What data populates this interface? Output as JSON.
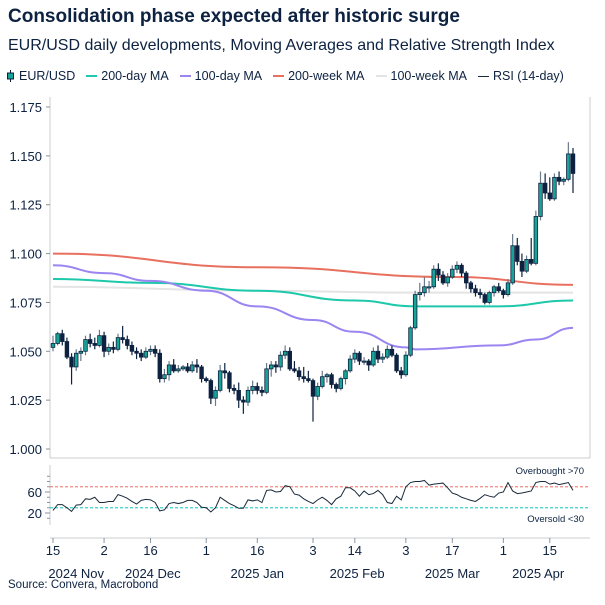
{
  "chart_data": {
    "type": "candlestick+line",
    "title": "Consolidation phase expected after historic surge",
    "subtitle": "EUR/USD daily developments, Moving Averages and Relative Strength Index",
    "source": "Source: Convera, Macrobond",
    "legend": [
      {
        "name": "EUR/USD",
        "color": "#17a398",
        "kind": "candle"
      },
      {
        "name": "200-day MA",
        "color": "#1ec8aa",
        "kind": "line"
      },
      {
        "name": "100-day MA",
        "color": "#9b85f0",
        "kind": "line"
      },
      {
        "name": "200-week MA",
        "color": "#e8705f",
        "kind": "line"
      },
      {
        "name": "100-week MA",
        "color": "#e4e4e4",
        "kind": "line"
      },
      {
        "name": "RSI (14-day)",
        "color": "#1a2a3a",
        "kind": "line"
      }
    ],
    "legend_position": "top-left",
    "colors": {
      "up": "#17a398",
      "down": "#0d2240",
      "overbought": "#f08a80",
      "oversold": "#3ad0c8"
    },
    "price_axis": {
      "ylim": [
        1.0,
        1.175
      ],
      "ticks": [
        "1.000",
        "1.025",
        "1.050",
        "1.075",
        "1.100",
        "1.125",
        "1.150",
        "1.175"
      ]
    },
    "rsi_axis": {
      "ylim": [
        0,
        100
      ],
      "ticks": [
        "20",
        "60"
      ],
      "overbought": 70,
      "oversold": 30,
      "overbought_label": "Overbought >70",
      "oversold_label": "Oversold <30"
    },
    "x_ticks": [
      {
        "date": "2024-11-15",
        "label": "15"
      },
      {
        "date": "2024-12-02",
        "label": "2"
      },
      {
        "date": "2024-12-16",
        "label": "16"
      },
      {
        "date": "2025-01-01",
        "label": "1"
      },
      {
        "date": "2025-01-16",
        "label": "16"
      },
      {
        "date": "2025-02-03",
        "label": "3"
      },
      {
        "date": "2025-02-14",
        "label": "14"
      },
      {
        "date": "2025-03-03",
        "label": "3"
      },
      {
        "date": "2025-03-17",
        "label": "17"
      },
      {
        "date": "2025-04-01",
        "label": "1"
      },
      {
        "date": "2025-04-15",
        "label": "15"
      }
    ],
    "x_months": [
      {
        "month": "2024-11",
        "label": "2024 Nov"
      },
      {
        "month": "2024-12",
        "label": "2024 Dec"
      },
      {
        "month": "2025-01",
        "label": "2025 Jan"
      },
      {
        "month": "2025-02",
        "label": "2025 Feb"
      },
      {
        "month": "2025-03",
        "label": "2025 Mar"
      },
      {
        "month": "2025-04",
        "label": "2025 Apr"
      }
    ],
    "candle_fields": [
      "date",
      "open",
      "high",
      "low",
      "close",
      "rsi"
    ],
    "candles": [
      [
        "2024-11-15",
        1.052,
        1.058,
        1.05,
        1.054,
        25
      ],
      [
        "2024-11-18",
        1.054,
        1.06,
        1.053,
        1.059,
        36
      ],
      [
        "2024-11-19",
        1.059,
        1.061,
        1.053,
        1.055,
        36
      ],
      [
        "2024-11-20",
        1.055,
        1.057,
        1.046,
        1.047,
        30
      ],
      [
        "2024-11-21",
        1.047,
        1.049,
        1.033,
        1.042,
        23
      ],
      [
        "2024-11-22",
        1.042,
        1.051,
        1.04,
        1.049,
        35
      ],
      [
        "2024-11-25",
        1.049,
        1.052,
        1.045,
        1.05,
        36
      ],
      [
        "2024-11-26",
        1.05,
        1.058,
        1.048,
        1.056,
        47
      ],
      [
        "2024-11-27",
        1.056,
        1.059,
        1.052,
        1.054,
        46
      ],
      [
        "2024-11-28",
        1.054,
        1.057,
        1.051,
        1.053,
        50
      ],
      [
        "2024-11-29",
        1.053,
        1.061,
        1.052,
        1.058,
        40
      ],
      [
        "2024-12-02",
        1.058,
        1.06,
        1.047,
        1.05,
        40
      ],
      [
        "2024-12-03",
        1.05,
        1.054,
        1.048,
        1.052,
        42
      ],
      [
        "2024-12-04",
        1.052,
        1.055,
        1.049,
        1.051,
        42
      ],
      [
        "2024-12-05",
        1.051,
        1.059,
        1.05,
        1.057,
        55
      ],
      [
        "2024-12-06",
        1.057,
        1.063,
        1.054,
        1.056,
        52
      ],
      [
        "2024-12-09",
        1.056,
        1.058,
        1.051,
        1.053,
        48
      ],
      [
        "2024-12-10",
        1.053,
        1.055,
        1.048,
        1.05,
        42
      ],
      [
        "2024-12-11",
        1.05,
        1.052,
        1.046,
        1.049,
        37
      ],
      [
        "2024-12-12",
        1.049,
        1.051,
        1.045,
        1.047,
        44
      ],
      [
        "2024-12-13",
        1.047,
        1.052,
        1.046,
        1.05,
        46
      ],
      [
        "2024-12-16",
        1.05,
        1.053,
        1.048,
        1.051,
        45
      ],
      [
        "2024-12-17",
        1.051,
        1.053,
        1.047,
        1.049,
        40
      ],
      [
        "2024-12-18",
        1.049,
        1.051,
        1.034,
        1.036,
        24
      ],
      [
        "2024-12-19",
        1.036,
        1.041,
        1.034,
        1.038,
        26
      ],
      [
        "2024-12-20",
        1.038,
        1.045,
        1.035,
        1.043,
        38
      ],
      [
        "2024-12-23",
        1.043,
        1.046,
        1.039,
        1.04,
        40
      ],
      [
        "2024-12-24",
        1.04,
        1.043,
        1.039,
        1.041,
        38
      ],
      [
        "2024-12-25",
        1.041,
        1.043,
        1.04,
        1.042,
        40
      ],
      [
        "2024-12-26",
        1.042,
        1.044,
        1.039,
        1.04,
        44
      ],
      [
        "2024-12-27",
        1.04,
        1.045,
        1.039,
        1.043,
        44
      ],
      [
        "2024-12-30",
        1.043,
        1.046,
        1.039,
        1.042,
        40
      ],
      [
        "2024-12-31",
        1.042,
        1.043,
        1.034,
        1.036,
        31
      ],
      [
        "2025-01-01",
        1.036,
        1.037,
        1.034,
        1.035,
        30
      ],
      [
        "2025-01-02",
        1.035,
        1.036,
        1.023,
        1.026,
        22
      ],
      [
        "2025-01-03",
        1.026,
        1.032,
        1.022,
        1.03,
        30
      ],
      [
        "2025-01-06",
        1.03,
        1.043,
        1.029,
        1.04,
        50
      ],
      [
        "2025-01-07",
        1.04,
        1.044,
        1.036,
        1.039,
        44
      ],
      [
        "2025-01-08",
        1.039,
        1.04,
        1.029,
        1.031,
        38
      ],
      [
        "2025-01-09",
        1.031,
        1.033,
        1.028,
        1.03,
        34
      ],
      [
        "2025-01-10",
        1.03,
        1.034,
        1.021,
        1.025,
        29
      ],
      [
        "2025-01-13",
        1.025,
        1.027,
        1.018,
        1.024,
        29
      ],
      [
        "2025-01-14",
        1.024,
        1.032,
        1.022,
        1.03,
        45
      ],
      [
        "2025-01-15",
        1.03,
        1.035,
        1.028,
        1.032,
        43
      ],
      [
        "2025-01-16",
        1.032,
        1.034,
        1.028,
        1.03,
        45
      ],
      [
        "2025-01-17",
        1.03,
        1.032,
        1.027,
        1.029,
        40
      ],
      [
        "2025-01-20",
        1.029,
        1.044,
        1.028,
        1.041,
        63
      ],
      [
        "2025-01-21",
        1.041,
        1.045,
        1.037,
        1.043,
        64
      ],
      [
        "2025-01-22",
        1.043,
        1.045,
        1.039,
        1.042,
        60
      ],
      [
        "2025-01-23",
        1.042,
        1.05,
        1.04,
        1.048,
        61
      ],
      [
        "2025-01-24",
        1.048,
        1.053,
        1.046,
        1.05,
        72
      ],
      [
        "2025-01-27",
        1.05,
        1.052,
        1.04,
        1.041,
        70
      ],
      [
        "2025-01-28",
        1.041,
        1.045,
        1.039,
        1.04,
        56
      ],
      [
        "2025-01-29",
        1.04,
        1.042,
        1.035,
        1.037,
        54
      ],
      [
        "2025-01-30",
        1.037,
        1.042,
        1.034,
        1.036,
        47
      ],
      [
        "2025-01-31",
        1.036,
        1.04,
        1.034,
        1.035,
        42
      ],
      [
        "2025-02-03",
        1.035,
        1.036,
        1.014,
        1.027,
        38
      ],
      [
        "2025-02-04",
        1.027,
        1.034,
        1.025,
        1.032,
        45
      ],
      [
        "2025-02-05",
        1.032,
        1.04,
        1.031,
        1.037,
        50
      ],
      [
        "2025-02-06",
        1.037,
        1.039,
        1.034,
        1.038,
        44
      ],
      [
        "2025-02-07",
        1.038,
        1.039,
        1.031,
        1.033,
        36
      ],
      [
        "2025-02-10",
        1.033,
        1.034,
        1.029,
        1.031,
        47
      ],
      [
        "2025-02-11",
        1.031,
        1.037,
        1.03,
        1.036,
        52
      ],
      [
        "2025-02-12",
        1.036,
        1.041,
        1.033,
        1.04,
        68
      ],
      [
        "2025-02-13",
        1.04,
        1.048,
        1.039,
        1.046,
        68
      ],
      [
        "2025-02-14",
        1.046,
        1.051,
        1.044,
        1.049,
        62
      ],
      [
        "2025-02-17",
        1.049,
        1.05,
        1.043,
        1.045,
        52
      ],
      [
        "2025-02-18",
        1.045,
        1.047,
        1.043,
        1.045,
        62
      ],
      [
        "2025-02-19",
        1.045,
        1.046,
        1.04,
        1.043,
        55
      ],
      [
        "2025-02-20",
        1.043,
        1.052,
        1.042,
        1.05,
        57
      ],
      [
        "2025-02-21",
        1.05,
        1.053,
        1.044,
        1.046,
        63
      ],
      [
        "2025-02-24",
        1.046,
        1.049,
        1.044,
        1.047,
        55
      ],
      [
        "2025-02-25",
        1.047,
        1.053,
        1.046,
        1.051,
        40
      ],
      [
        "2025-02-26",
        1.051,
        1.053,
        1.047,
        1.048,
        38
      ],
      [
        "2025-02-27",
        1.048,
        1.049,
        1.039,
        1.04,
        52
      ],
      [
        "2025-02-28",
        1.04,
        1.042,
        1.036,
        1.038,
        45
      ],
      [
        "2025-03-03",
        1.038,
        1.05,
        1.037,
        1.048,
        70
      ],
      [
        "2025-03-04",
        1.048,
        1.063,
        1.047,
        1.062,
        78
      ],
      [
        "2025-03-05",
        1.062,
        1.081,
        1.061,
        1.079,
        80
      ],
      [
        "2025-03-06",
        1.079,
        1.085,
        1.076,
        1.08,
        80
      ],
      [
        "2025-03-07",
        1.08,
        1.088,
        1.078,
        1.083,
        82
      ],
      [
        "2025-03-10",
        1.083,
        1.086,
        1.08,
        1.083,
        73
      ],
      [
        "2025-03-11",
        1.083,
        1.094,
        1.082,
        1.092,
        75
      ],
      [
        "2025-03-12",
        1.092,
        1.095,
        1.086,
        1.089,
        76
      ],
      [
        "2025-03-13",
        1.089,
        1.091,
        1.084,
        1.085,
        77
      ],
      [
        "2025-03-14",
        1.085,
        1.09,
        1.083,
        1.088,
        68
      ],
      [
        "2025-03-17",
        1.088,
        1.094,
        1.087,
        1.092,
        58
      ],
      [
        "2025-03-18",
        1.092,
        1.096,
        1.09,
        1.094,
        55
      ],
      [
        "2025-03-19",
        1.094,
        1.095,
        1.088,
        1.09,
        50
      ],
      [
        "2025-03-20",
        1.09,
        1.091,
        1.082,
        1.085,
        47
      ],
      [
        "2025-03-21",
        1.085,
        1.086,
        1.08,
        1.082,
        44
      ],
      [
        "2025-03-24",
        1.082,
        1.084,
        1.078,
        1.08,
        42
      ],
      [
        "2025-03-25",
        1.08,
        1.082,
        1.077,
        1.079,
        48
      ],
      [
        "2025-03-26",
        1.079,
        1.08,
        1.074,
        1.075,
        55
      ],
      [
        "2025-03-27",
        1.075,
        1.081,
        1.074,
        1.08,
        52
      ],
      [
        "2025-03-28",
        1.08,
        1.084,
        1.078,
        1.083,
        50
      ],
      [
        "2025-03-31",
        1.083,
        1.085,
        1.08,
        1.081,
        58
      ],
      [
        "2025-04-01",
        1.081,
        1.082,
        1.077,
        1.079,
        60
      ],
      [
        "2025-04-02",
        1.079,
        1.087,
        1.078,
        1.085,
        78
      ],
      [
        "2025-04-03",
        1.085,
        1.11,
        1.084,
        1.104,
        62
      ],
      [
        "2025-04-04",
        1.104,
        1.108,
        1.094,
        1.096,
        57
      ],
      [
        "2025-04-07",
        1.096,
        1.1,
        1.088,
        1.091,
        58
      ],
      [
        "2025-04-08",
        1.091,
        1.099,
        1.09,
        1.097,
        60
      ],
      [
        "2025-04-09",
        1.097,
        1.108,
        1.094,
        1.095,
        62
      ],
      [
        "2025-04-10",
        1.095,
        1.122,
        1.094,
        1.119,
        78
      ],
      [
        "2025-04-11",
        1.119,
        1.142,
        1.117,
        1.136,
        80
      ],
      [
        "2025-04-14",
        1.136,
        1.141,
        1.128,
        1.131,
        80
      ],
      [
        "2025-04-15",
        1.131,
        1.139,
        1.127,
        1.128,
        75
      ],
      [
        "2025-04-16",
        1.128,
        1.141,
        1.127,
        1.139,
        77
      ],
      [
        "2025-04-17",
        1.139,
        1.142,
        1.135,
        1.137,
        74
      ],
      [
        "2025-04-18",
        1.137,
        1.139,
        1.135,
        1.138,
        76
      ],
      [
        "2025-04-21",
        1.138,
        1.157,
        1.137,
        1.151,
        78
      ],
      [
        "2025-04-22",
        1.151,
        1.154,
        1.131,
        1.141,
        63
      ]
    ],
    "moving_averages": [
      {
        "name": "200-week MA",
        "color": "#e8705f",
        "points": [
          [
            "2024-11-15",
            1.1
          ],
          [
            "2025-01-16",
            1.093
          ],
          [
            "2025-03-17",
            1.088
          ],
          [
            "2025-04-22",
            1.084
          ]
        ]
      },
      {
        "name": "100-week MA",
        "color": "#e4e4e4",
        "points": [
          [
            "2024-11-15",
            1.083
          ],
          [
            "2025-01-16",
            1.081
          ],
          [
            "2025-03-03",
            1.08
          ],
          [
            "2025-04-22",
            1.08
          ]
        ]
      },
      {
        "name": "200-day MA",
        "color": "#1ec8aa",
        "points": [
          [
            "2024-11-15",
            1.087
          ],
          [
            "2024-12-16",
            1.085
          ],
          [
            "2025-01-16",
            1.081
          ],
          [
            "2025-02-14",
            1.076
          ],
          [
            "2025-03-05",
            1.073
          ],
          [
            "2025-03-31",
            1.073
          ],
          [
            "2025-04-22",
            1.076
          ]
        ]
      },
      {
        "name": "100-day MA",
        "color": "#9b85f0",
        "points": [
          [
            "2024-11-15",
            1.094
          ],
          [
            "2024-12-02",
            1.09
          ],
          [
            "2024-12-16",
            1.086
          ],
          [
            "2025-01-01",
            1.081
          ],
          [
            "2025-01-16",
            1.073
          ],
          [
            "2025-02-03",
            1.066
          ],
          [
            "2025-02-14",
            1.06
          ],
          [
            "2025-03-03",
            1.052
          ],
          [
            "2025-03-05",
            1.051
          ],
          [
            "2025-03-31",
            1.053
          ],
          [
            "2025-04-10",
            1.056
          ],
          [
            "2025-04-22",
            1.062
          ]
        ]
      }
    ]
  }
}
